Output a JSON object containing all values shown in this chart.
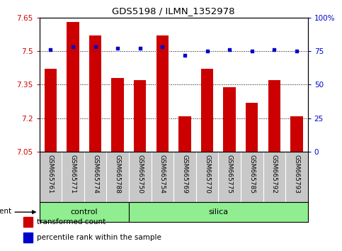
{
  "title": "GDS5198 / ILMN_1352978",
  "samples": [
    "GSM665761",
    "GSM665771",
    "GSM665774",
    "GSM665788",
    "GSM665750",
    "GSM665754",
    "GSM665769",
    "GSM665770",
    "GSM665775",
    "GSM665785",
    "GSM665792",
    "GSM665793"
  ],
  "groups": [
    "control",
    "control",
    "control",
    "control",
    "silica",
    "silica",
    "silica",
    "silica",
    "silica",
    "silica",
    "silica",
    "silica"
  ],
  "transformed_count": [
    7.42,
    7.63,
    7.57,
    7.38,
    7.37,
    7.57,
    7.21,
    7.42,
    7.34,
    7.27,
    7.37,
    7.21
  ],
  "percentile_rank": [
    76,
    78,
    78,
    77,
    77,
    78,
    72,
    75,
    76,
    75,
    76,
    75
  ],
  "ylim_left": [
    7.05,
    7.65
  ],
  "ylim_right": [
    0,
    100
  ],
  "yticks_left": [
    7.05,
    7.2,
    7.35,
    7.5,
    7.65
  ],
  "yticks_right": [
    0,
    25,
    50,
    75,
    100
  ],
  "ytick_labels_left": [
    "7.05",
    "7.2",
    "7.35",
    "7.5",
    "7.65"
  ],
  "ytick_labels_right": [
    "0",
    "25",
    "50",
    "75",
    "100%"
  ],
  "bar_color": "#cc0000",
  "dot_color": "#0000cc",
  "bar_width": 0.55,
  "group_bg": "#90ee90",
  "tick_label_area_bg": "#c8c8c8",
  "left_axis_color": "#cc0000",
  "right_axis_color": "#0000cc",
  "control_count": 4,
  "silica_count": 8
}
